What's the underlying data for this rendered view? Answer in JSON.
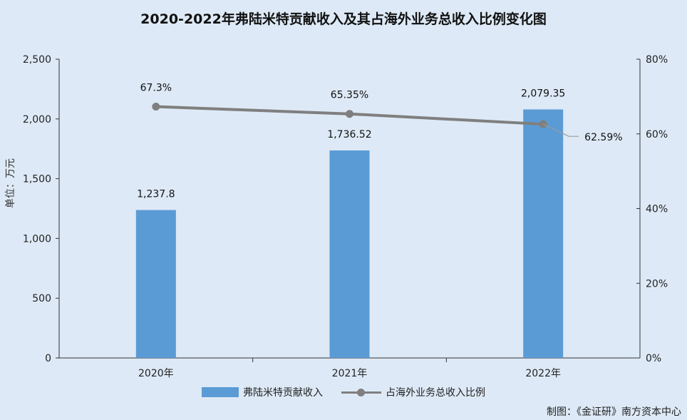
{
  "title": "2020-2022年弗陆米特贡献收入及其占海外业务总收入比例变化图",
  "y_axis_label": "单位：万元",
  "left_ticks": [
    "0",
    "500",
    "1,000",
    "1,500",
    "2,000",
    "2,500"
  ],
  "right_ticks": [
    "0%",
    "20%",
    "40%",
    "60%",
    "80%"
  ],
  "categories": [
    "2020年",
    "2021年",
    "2022年"
  ],
  "bar_labels": [
    "1,237.8",
    "1,736.52",
    "2,079.35"
  ],
  "line_labels": [
    "67.3%",
    "65.35%",
    "62.59%"
  ],
  "legend": {
    "bar": "弗陆米特贡献收入",
    "line": "占海外业务总收入比例"
  },
  "source": "制图：《金证研》南方资本中心",
  "colors": {
    "bar": "#5b9bd5",
    "line": "#7f7f7f",
    "background": "#dde9f6"
  },
  "chart_data": {
    "type": "bar",
    "title": "2020-2022年弗陆米特贡献收入及其占海外业务总收入比例变化图",
    "categories": [
      "2020年",
      "2021年",
      "2022年"
    ],
    "series": [
      {
        "name": "弗陆米特贡献收入",
        "type": "bar",
        "axis": "left",
        "values": [
          1237.8,
          1736.52,
          2079.35
        ]
      },
      {
        "name": "占海外业务总收入比例",
        "type": "line",
        "axis": "right",
        "values": [
          67.3,
          65.35,
          62.59
        ],
        "unit": "%"
      }
    ],
    "xlabel": "",
    "ylabel": "单位：万元",
    "ylim": [
      0,
      2500
    ],
    "y2lim": [
      0,
      80
    ],
    "y2label": "%",
    "legend_position": "bottom",
    "grid": false
  }
}
